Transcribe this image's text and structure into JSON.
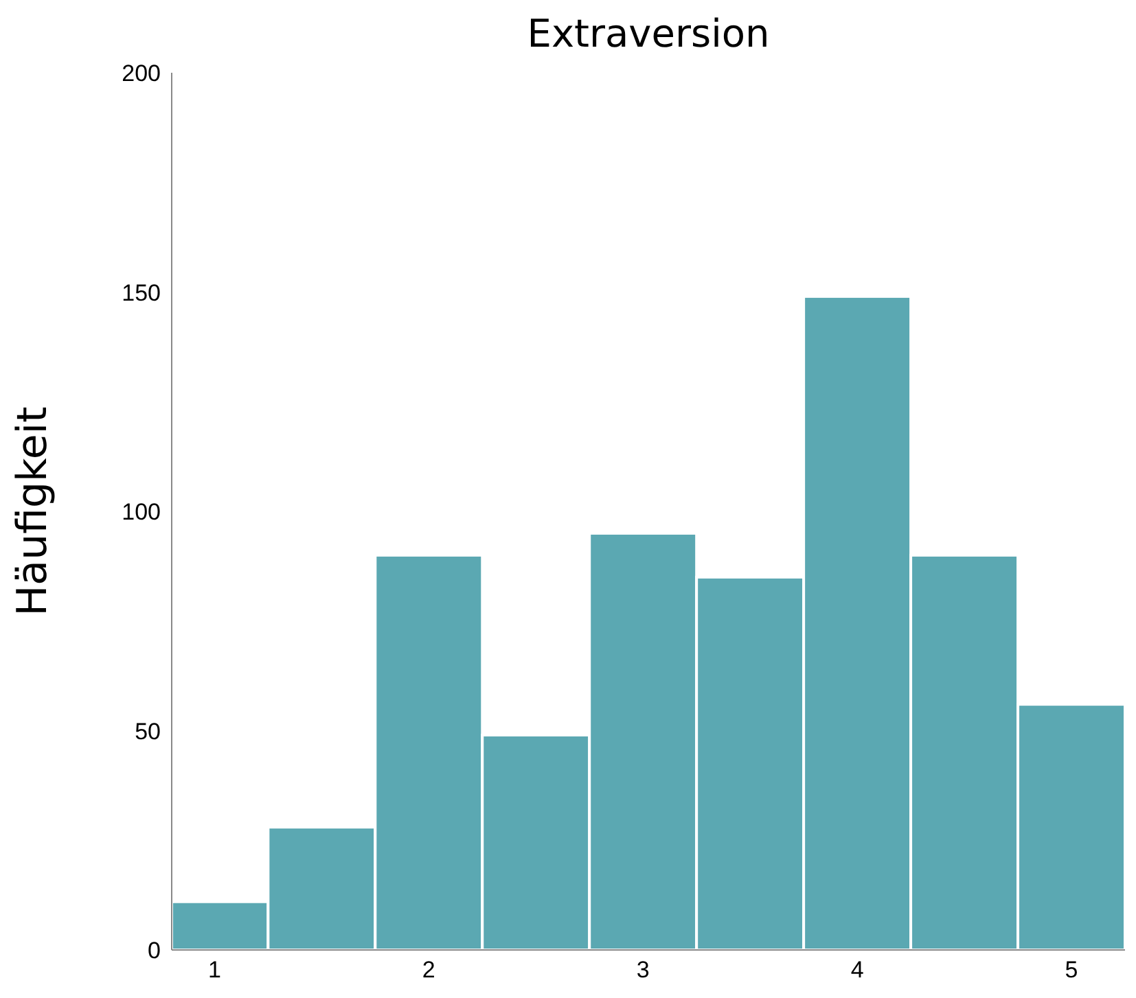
{
  "chart_data": {
    "type": "histogram",
    "title": "Extraversion",
    "ylabel": "Häufigkeit",
    "bins": [
      0.8,
      1.25,
      1.75,
      2.25,
      2.75,
      3.25,
      3.75,
      4.25,
      4.75,
      5.25
    ],
    "values": [
      11,
      28,
      90,
      49,
      95,
      85,
      149,
      90,
      56
    ],
    "color": "#5ba8b2",
    "xlim": [
      0.8,
      5.25
    ],
    "xticks": [
      1,
      2,
      3,
      4,
      5
    ],
    "ylim": [
      0,
      200
    ],
    "yticks": [
      0,
      50,
      100,
      150,
      200
    ],
    "grid": false
  }
}
